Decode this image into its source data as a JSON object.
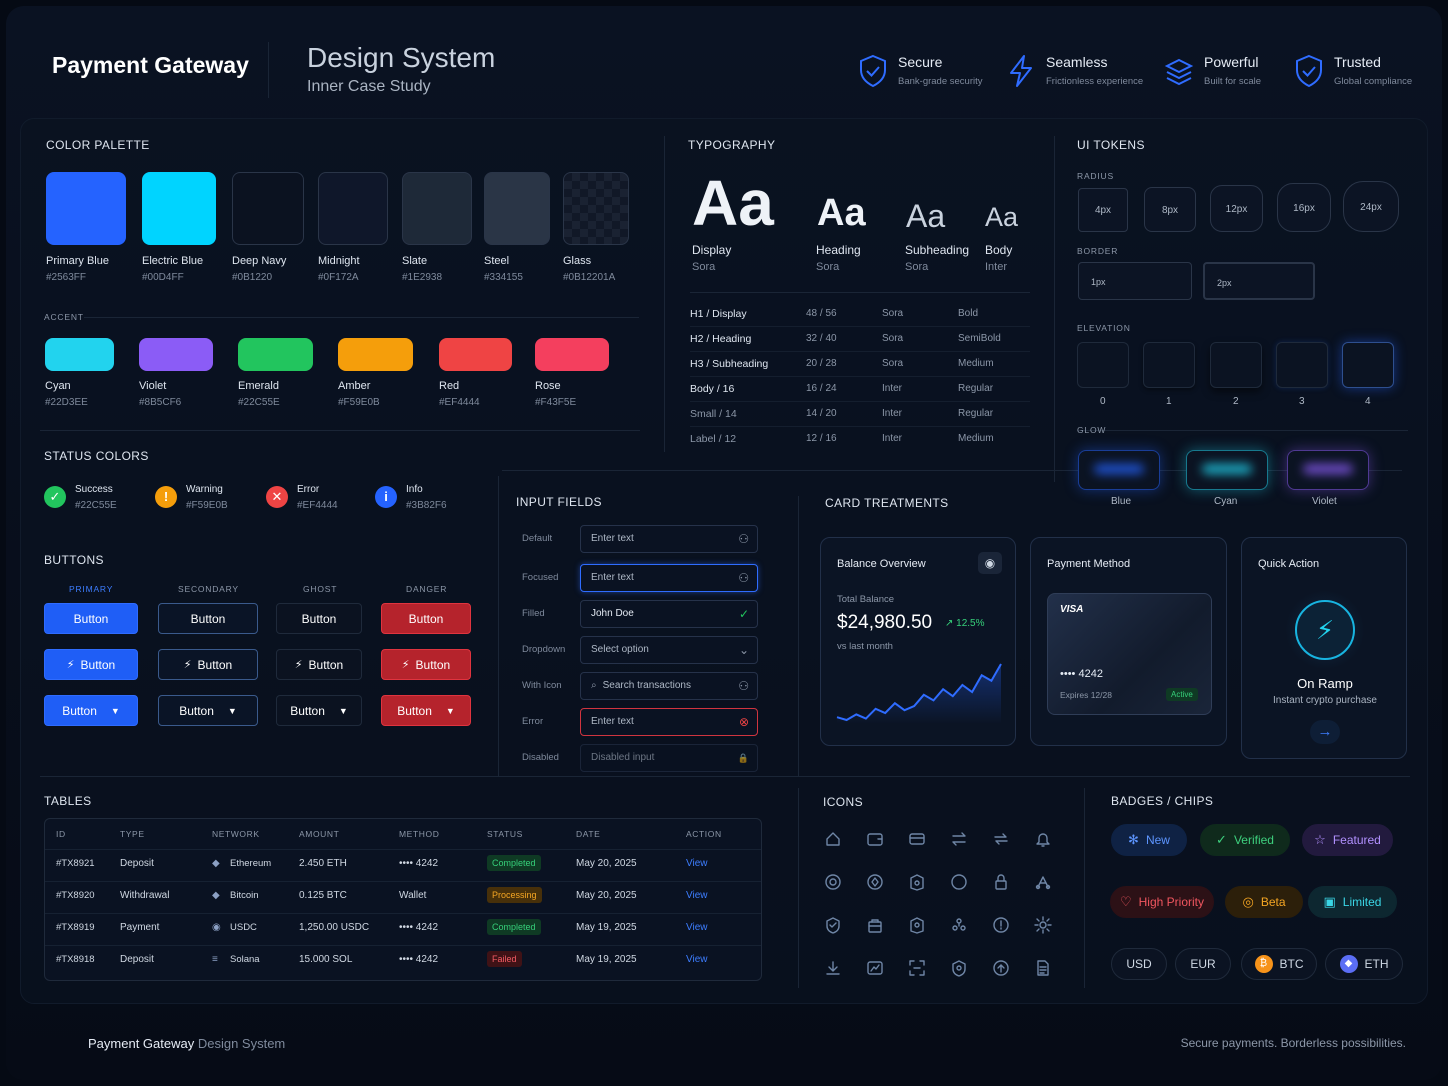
{
  "header": {
    "brand": "Payment Gateway",
    "title": "Design System",
    "subtitle": "Inner Case Study",
    "features": [
      {
        "icon": "shield-check-icon",
        "title": "Secure",
        "subtitle": "Bank-grade security"
      },
      {
        "icon": "lightning-icon",
        "title": "Seamless",
        "subtitle": "Frictionless experience"
      },
      {
        "icon": "layers-icon",
        "title": "Powerful",
        "subtitle": "Built for scale"
      },
      {
        "icon": "shield-check-icon",
        "title": "Trusted",
        "subtitle": "Global compliance"
      }
    ]
  },
  "palette": {
    "title": "COLOR PALETTE",
    "primary": [
      {
        "name": "Primary Blue",
        "hex": "#2563FF",
        "color": "#2563ff"
      },
      {
        "name": "Electric Blue",
        "hex": "#00D4FF",
        "color": "#00d4ff"
      },
      {
        "name": "Deep Navy",
        "hex": "#0B1220",
        "color": "#0b1220"
      },
      {
        "name": "Midnight",
        "hex": "#0F172A",
        "color": "#0f172a"
      },
      {
        "name": "Slate",
        "hex": "#1E2938",
        "color": "#1e2938"
      },
      {
        "name": "Steel",
        "hex": "#334155",
        "color": "#2a3546"
      },
      {
        "name": "Glass",
        "hex": "#0B12201A",
        "color": "#141c2a"
      }
    ],
    "accent_title": "ACCENT",
    "accent": [
      {
        "name": "Cyan",
        "hex": "#22D3EE",
        "color": "#22d3ee"
      },
      {
        "name": "Violet",
        "hex": "#8B5CF6",
        "color": "#8b5cf6"
      },
      {
        "name": "Emerald",
        "hex": "#22C55E",
        "color": "#22c55e"
      },
      {
        "name": "Amber",
        "hex": "#F59E0B",
        "color": "#f59e0b"
      },
      {
        "name": "Red",
        "hex": "#EF4444",
        "color": "#ef4444"
      },
      {
        "name": "Rose",
        "hex": "#F43F5E",
        "color": "#f43f5e"
      }
    ]
  },
  "status": {
    "title": "STATUS COLORS",
    "items": [
      {
        "name": "Success",
        "hex": "#22C55E",
        "glyph": "✓",
        "color": "#22c55e"
      },
      {
        "name": "Warning",
        "hex": "#F59E0B",
        "glyph": "!",
        "color": "#f59e0b"
      },
      {
        "name": "Error",
        "hex": "#EF4444",
        "glyph": "✕",
        "color": "#ef4444"
      },
      {
        "name": "Info",
        "hex": "#3B82F6",
        "glyph": "i",
        "color": "#2563ff"
      }
    ]
  },
  "buttons": {
    "title": "BUTTONS",
    "columns": [
      "PRIMARY",
      "SECONDARY",
      "GHOST",
      "DANGER"
    ],
    "label": "Button"
  },
  "typography": {
    "title": "TYPOGRAPHY",
    "samples": [
      {
        "glyph": "Aa",
        "name": "Display",
        "font": "Sora"
      },
      {
        "glyph": "Aa",
        "name": "Heading",
        "font": "Sora"
      },
      {
        "glyph": "Aa",
        "name": "Subheading",
        "font": "Sora"
      },
      {
        "glyph": "Aa",
        "name": "Body",
        "font": "Inter"
      }
    ],
    "scale": [
      {
        "name": "H1 / Display",
        "size": "48 / 56",
        "font": "Sora",
        "weight": "Bold"
      },
      {
        "name": "H2 / Heading",
        "size": "32 / 40",
        "font": "Sora",
        "weight": "SemiBold"
      },
      {
        "name": "H3 / Subheading",
        "size": "20 / 28",
        "font": "Sora",
        "weight": "Medium"
      },
      {
        "name": "Body / 16",
        "size": "16 / 24",
        "font": "Inter",
        "weight": "Regular"
      },
      {
        "name": "Small / 14",
        "size": "14 / 20",
        "font": "Inter",
        "weight": "Regular"
      },
      {
        "name": "Label / 12",
        "size": "12 / 16",
        "font": "Inter",
        "weight": "Medium"
      }
    ]
  },
  "tokens": {
    "title": "UI TOKENS",
    "radius_title": "RADIUS",
    "radius": [
      "4px",
      "8px",
      "12px",
      "16px",
      "24px"
    ],
    "border_title": "BORDER",
    "border": [
      "1px",
      "2px"
    ],
    "elevation_title": "ELEVATION",
    "elevation": [
      "0",
      "1",
      "2",
      "3",
      "4"
    ],
    "glow_title": "GLOW",
    "glow": [
      {
        "name": "Blue",
        "color": "#2563ff"
      },
      {
        "name": "Cyan",
        "color": "#22d3ee"
      },
      {
        "name": "Violet",
        "color": "#8b5cf6"
      }
    ]
  },
  "inputs": {
    "title": "INPUT FIELDS",
    "fields": [
      {
        "label": "Default",
        "value": "Enter text",
        "icon": "user-icon",
        "glyph": "⚇"
      },
      {
        "label": "Focused",
        "value": "Enter text",
        "icon": "user-icon",
        "glyph": "⚇"
      },
      {
        "label": "Filled",
        "value": "John Doe",
        "icon": "check-circle-icon",
        "glyph": "✓"
      },
      {
        "label": "Dropdown",
        "value": "Select option",
        "icon": "chevron-down-icon",
        "glyph": "⌄"
      },
      {
        "label": "With Icon",
        "value": "Search transactions",
        "icon": "user-icon",
        "glyph": "⚇"
      },
      {
        "label": "Error",
        "value": "Enter text",
        "icon": "error-circle-icon",
        "glyph": "⊗"
      },
      {
        "label": "Disabled",
        "value": "Disabled input",
        "icon": "lock-icon",
        "glyph": "🔒"
      }
    ]
  },
  "cards": {
    "title": "CARD TREATMENTS",
    "balance": {
      "title": "Balance Overview",
      "label": "Total Balance",
      "amount": "$24,980.50",
      "change": "↗ 12.5%",
      "period": "vs last month",
      "trend": [
        12,
        10,
        14,
        11,
        18,
        15,
        22,
        17,
        20,
        28,
        24,
        32,
        27,
        35,
        30,
        42,
        38,
        50
      ]
    },
    "payment": {
      "title": "Payment Method",
      "brand": "VISA",
      "number": "•••• 4242",
      "expires": "Expires 12/28",
      "status": "Active"
    },
    "quick": {
      "title": "Quick Action",
      "name": "On Ramp",
      "desc": "Instant crypto purchase"
    }
  },
  "tables": {
    "title": "TABLES",
    "headers": [
      "ID",
      "TYPE",
      "NETWORK",
      "AMOUNT",
      "METHOD",
      "STATUS",
      "DATE",
      "ACTION"
    ],
    "rows": [
      {
        "id": "#TX8921",
        "type": "Deposit",
        "network": "Ethereum",
        "net_glyph": "◆",
        "amount": "2.450 ETH",
        "method": "•••• 4242",
        "status": "Completed",
        "kind": "pc",
        "date": "May 20, 2025",
        "action": "View"
      },
      {
        "id": "#TX8920",
        "type": "Withdrawal",
        "network": "Bitcoin",
        "net_glyph": "◆",
        "amount": "0.125 BTC",
        "method": "Wallet",
        "status": "Processing",
        "kind": "pp",
        "date": "May 20, 2025",
        "action": "View"
      },
      {
        "id": "#TX8919",
        "type": "Payment",
        "network": "USDC",
        "net_glyph": "◉",
        "amount": "1,250.00 USDC",
        "method": "•••• 4242",
        "status": "Completed",
        "kind": "pc",
        "date": "May 19, 2025",
        "action": "View"
      },
      {
        "id": "#TX8918",
        "type": "Deposit",
        "network": "Solana",
        "net_glyph": "≡",
        "amount": "15.000 SOL",
        "method": "•••• 4242",
        "status": "Failed",
        "kind": "pf",
        "date": "May 19, 2025",
        "action": "View"
      }
    ]
  },
  "icons": {
    "title": "ICONS",
    "names": [
      "home-icon",
      "wallet-icon",
      "card-icon",
      "transfer-icon",
      "swap-icon",
      "bell-icon",
      "settings-icon",
      "coin-icon",
      "shield-icon",
      "globe-icon",
      "lock-icon",
      "network-icon",
      "verify-icon",
      "bag-icon",
      "key-icon",
      "chart-nodes-icon",
      "info-icon",
      "gear-icon",
      "download-icon",
      "chart-icon",
      "scan-icon",
      "badge-icon",
      "upload-icon",
      "document-icon"
    ]
  },
  "badges": {
    "title": "BADGES / CHIPS",
    "row1": [
      {
        "label": "New",
        "glyph": "✻",
        "fg": "#5d95ff",
        "bg": "#0f2244"
      },
      {
        "label": "Verified",
        "glyph": "✓",
        "fg": "#3ed07e",
        "bg": "#0f2a1c"
      },
      {
        "label": "Featured",
        "glyph": "☆",
        "fg": "#b291ff",
        "bg": "#221a3e"
      }
    ],
    "row2": [
      {
        "label": "High Priority",
        "glyph": "♡",
        "fg": "#f0565f",
        "bg": "#2c1116"
      },
      {
        "label": "Beta",
        "glyph": "◎",
        "fg": "#f5a623",
        "bg": "#2c1f0a"
      },
      {
        "label": "Limited",
        "glyph": "▣",
        "fg": "#3ad6e6",
        "bg": "#0d2730"
      }
    ],
    "row3": [
      {
        "label": "USD",
        "glyph": "",
        "fg": "#cfd8e4"
      },
      {
        "label": "EUR",
        "glyph": "",
        "fg": "#cfd8e4"
      },
      {
        "label": "BTC",
        "glyph": "₿",
        "fg": "#cfd8e4",
        "dot": "#f7931a"
      },
      {
        "label": "ETH",
        "glyph": "◆",
        "fg": "#cfd8e4",
        "dot": "#5b6ef5"
      }
    ]
  },
  "footer": {
    "brand": "Payment Gateway",
    "brand_suffix": "Design System",
    "tagline": "Secure payments. Borderless possibilities."
  }
}
